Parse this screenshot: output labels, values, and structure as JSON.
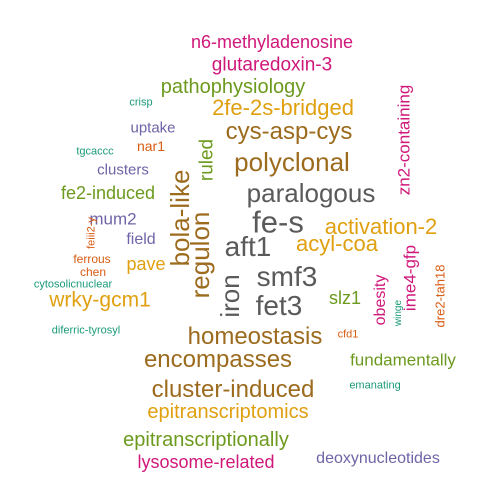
{
  "palette": {
    "magenta": "#d0177a",
    "olive": "#6c9a1e",
    "gold": "#e0a010",
    "purple": "#6e64a6",
    "teal": "#1b9a78",
    "brown": "#9c6b1e",
    "gray": "#5a5a5a",
    "orange": "#d85c12"
  },
  "words": [
    {
      "text": "n6-methyladenosine",
      "color": "magenta"
    },
    {
      "text": "glutaredoxin-3",
      "color": "magenta"
    },
    {
      "text": "pathophysiology",
      "color": "olive"
    },
    {
      "text": "crisp",
      "color": "teal"
    },
    {
      "text": "2fe-2s-bridged",
      "color": "gold"
    },
    {
      "text": "zn2-containing",
      "color": "magenta"
    },
    {
      "text": "uptake",
      "color": "purple"
    },
    {
      "text": "cys-asp-cys",
      "color": "brown"
    },
    {
      "text": "tgcaccc",
      "color": "teal"
    },
    {
      "text": "nar1",
      "color": "orange"
    },
    {
      "text": "polyclonal",
      "color": "brown"
    },
    {
      "text": "clusters",
      "color": "purple"
    },
    {
      "text": "ruled",
      "color": "olive"
    },
    {
      "text": "fe2-induced",
      "color": "olive"
    },
    {
      "text": "paralogous",
      "color": "gray"
    },
    {
      "text": "bola-like",
      "color": "brown"
    },
    {
      "text": "mum2",
      "color": "purple"
    },
    {
      "text": "feiii2-y",
      "color": "orange"
    },
    {
      "text": "fe-s",
      "color": "gray"
    },
    {
      "text": "regulon",
      "color": "brown"
    },
    {
      "text": "activation-2",
      "color": "gold"
    },
    {
      "text": "field",
      "color": "purple"
    },
    {
      "text": "aft1",
      "color": "gray"
    },
    {
      "text": "acyl-coa",
      "color": "gold"
    },
    {
      "text": "ime4-gfp",
      "color": "magenta"
    },
    {
      "text": "ferrous",
      "color": "orange"
    },
    {
      "text": "pave",
      "color": "gold"
    },
    {
      "text": "chen",
      "color": "orange"
    },
    {
      "text": "iron",
      "color": "gray"
    },
    {
      "text": "smf3",
      "color": "gray"
    },
    {
      "text": "dre2-tah18",
      "color": "orange"
    },
    {
      "text": "cytosolicnuclear",
      "color": "teal"
    },
    {
      "text": "obesity",
      "color": "magenta"
    },
    {
      "text": "slz1",
      "color": "olive"
    },
    {
      "text": "wrky-gcm1",
      "color": "gold"
    },
    {
      "text": "fet3",
      "color": "gray"
    },
    {
      "text": "winge",
      "color": "teal"
    },
    {
      "text": "diferric-tyrosyl",
      "color": "teal"
    },
    {
      "text": "homeostasis",
      "color": "brown"
    },
    {
      "text": "cfd1",
      "color": "orange"
    },
    {
      "text": "encompasses",
      "color": "brown"
    },
    {
      "text": "fundamentally",
      "color": "olive"
    },
    {
      "text": "emanating",
      "color": "teal"
    },
    {
      "text": "cluster-induced",
      "color": "brown"
    },
    {
      "text": "epitranscriptomics",
      "color": "gold"
    },
    {
      "text": "epitranscriptionally",
      "color": "olive"
    },
    {
      "text": "lysosome-related",
      "color": "magenta"
    },
    {
      "text": "deoxynucleotides",
      "color": "purple"
    }
  ]
}
